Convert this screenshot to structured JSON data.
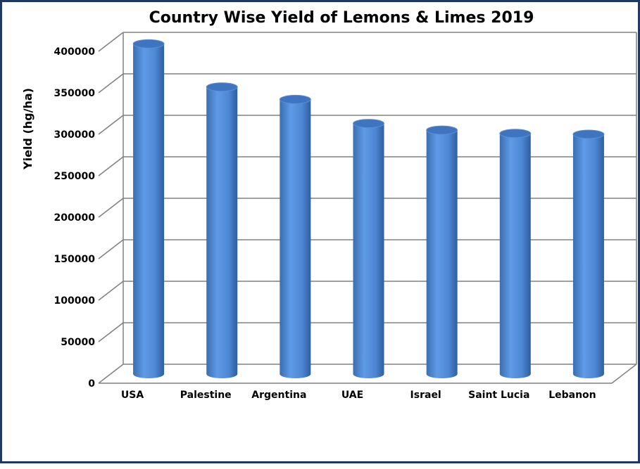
{
  "chart_data": {
    "type": "bar",
    "title": "Country Wise Yield of Lemons & Limes 2019",
    "xlabel": "",
    "ylabel": "Yield (hg/ha)",
    "categories": [
      "USA",
      "Palestine",
      "Argentina",
      "UAE",
      "Israel",
      "Saint Lucia",
      "Lebanon"
    ],
    "values": [
      398000,
      346000,
      331000,
      302000,
      294000,
      290000,
      289000
    ],
    "ylim": [
      0,
      400000
    ],
    "yticks": [
      "0",
      "50000",
      "100000",
      "150000",
      "200000",
      "250000",
      "300000",
      "350000",
      "400000"
    ],
    "grid": true,
    "style": "3d-cylinder",
    "bar_color": "#4a86d4",
    "frame_color": "#1f3864"
  }
}
